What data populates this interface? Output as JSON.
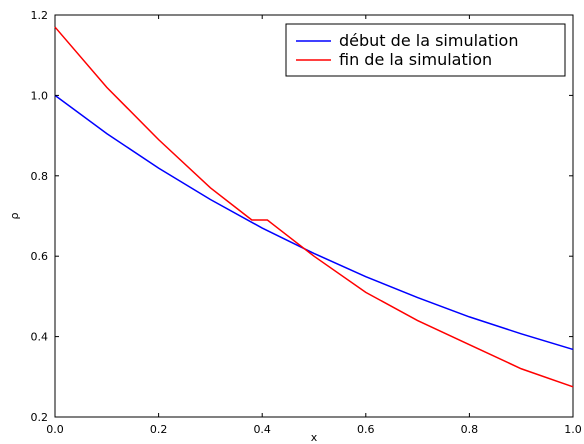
{
  "chart_data": {
    "type": "line",
    "title": "",
    "xlabel": "x",
    "ylabel": "ρ",
    "xlim": [
      0.0,
      1.0
    ],
    "ylim": [
      0.2,
      1.2
    ],
    "xticks": [
      "0.0",
      "0.2",
      "0.4",
      "0.6",
      "0.8",
      "1.0"
    ],
    "yticks": [
      "0.2",
      "0.4",
      "0.6",
      "0.8",
      "1.0",
      "1.2"
    ],
    "grid": false,
    "legend_position": "top-right",
    "series": [
      {
        "name": "début de la simulation",
        "color": "#0000ff",
        "x": [
          0.0,
          0.1,
          0.2,
          0.3,
          0.4,
          0.5,
          0.6,
          0.7,
          0.8,
          0.9,
          1.0
        ],
        "y": [
          1.0,
          0.905,
          0.819,
          0.741,
          0.67,
          0.607,
          0.549,
          0.497,
          0.449,
          0.407,
          0.368
        ]
      },
      {
        "name": "fin de la simulation",
        "color": "#ff0000",
        "x": [
          0.0,
          0.1,
          0.2,
          0.3,
          0.37,
          0.38,
          0.395,
          0.41,
          0.42,
          0.5,
          0.6,
          0.7,
          0.8,
          0.9,
          1.0
        ],
        "y": [
          1.17,
          1.02,
          0.89,
          0.77,
          0.7,
          0.69,
          0.69,
          0.69,
          0.68,
          0.6,
          0.51,
          0.44,
          0.38,
          0.32,
          0.275
        ]
      }
    ]
  }
}
